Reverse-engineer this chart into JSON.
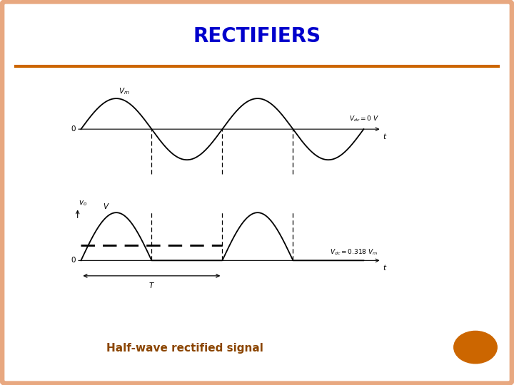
{
  "title": "RECTIFIERS",
  "subtitle": "Half-wave rectified signal",
  "title_color": "#0000cc",
  "subtitle_color": "#8B4500",
  "separator_color": "#cc6600",
  "background_color": "#ffffff",
  "border_color": "#e8a880",
  "signal_color": "#000000",
  "orange_circle_color": "#cc6600",
  "title_fontsize": 20,
  "subtitle_fontsize": 11,
  "fig_width": 7.2,
  "fig_height": 5.4,
  "fig_dpi": 100
}
